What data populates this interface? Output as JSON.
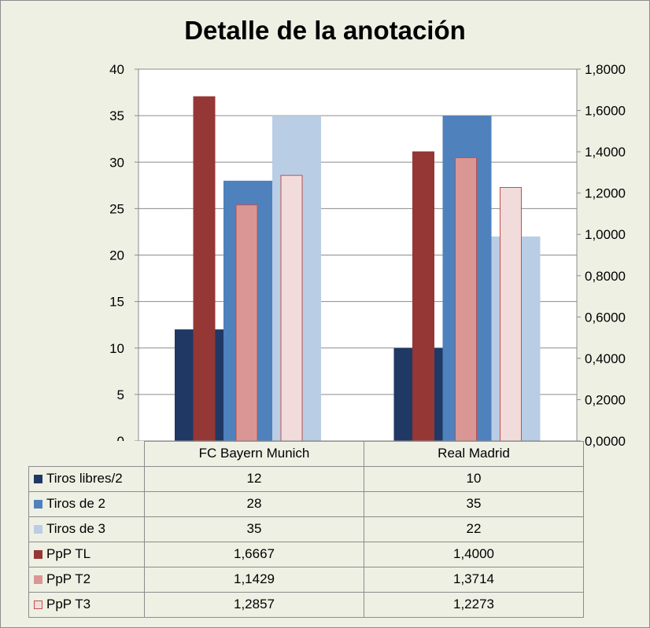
{
  "chart_data": {
    "type": "bar",
    "title": "Detalle de la anotación",
    "categories": [
      "FC Bayern Munich",
      "Real Madrid"
    ],
    "series": [
      {
        "name": "Tiros libres/2",
        "axis": "left",
        "values": [
          12,
          10
        ],
        "display": [
          "12",
          "10"
        ]
      },
      {
        "name": "Tiros de 2",
        "axis": "left",
        "values": [
          28,
          35
        ],
        "display": [
          "28",
          "35"
        ]
      },
      {
        "name": "Tiros de 3",
        "axis": "left",
        "values": [
          35,
          22
        ],
        "display": [
          "35",
          "22"
        ]
      },
      {
        "name": "PpP TL",
        "axis": "right",
        "values": [
          1.6667,
          1.4
        ],
        "display": [
          "1,6667",
          "1,4000"
        ]
      },
      {
        "name": "PpP T2",
        "axis": "right",
        "values": [
          1.1429,
          1.3714
        ],
        "display": [
          "1,1429",
          "1,3714"
        ]
      },
      {
        "name": "PpP T3",
        "axis": "right",
        "values": [
          1.2857,
          1.2273
        ],
        "display": [
          "1,2857",
          "1,2273"
        ]
      }
    ],
    "y_left": {
      "min": 0,
      "max": 40,
      "ticks": [
        "0",
        "5",
        "10",
        "15",
        "20",
        "25",
        "30",
        "35",
        "40"
      ]
    },
    "y_right": {
      "min": 0,
      "max": 1.8,
      "ticks": [
        "0,0000",
        "0,2000",
        "0,4000",
        "0,6000",
        "0,8000",
        "1,0000",
        "1,2000",
        "1,4000",
        "1,6000",
        "1,8000"
      ]
    },
    "grid": true,
    "legend": "data-table"
  },
  "colors": {
    "tiros_libres": "#1f3864",
    "tiros_2": "#4f81bd",
    "tiros_3": "#b9cde5",
    "ppp_tl": "#953735",
    "ppp_t2": "#d99694",
    "ppp_t3": "#f2dcdb",
    "ppp_t3_border": "#c0504d"
  }
}
